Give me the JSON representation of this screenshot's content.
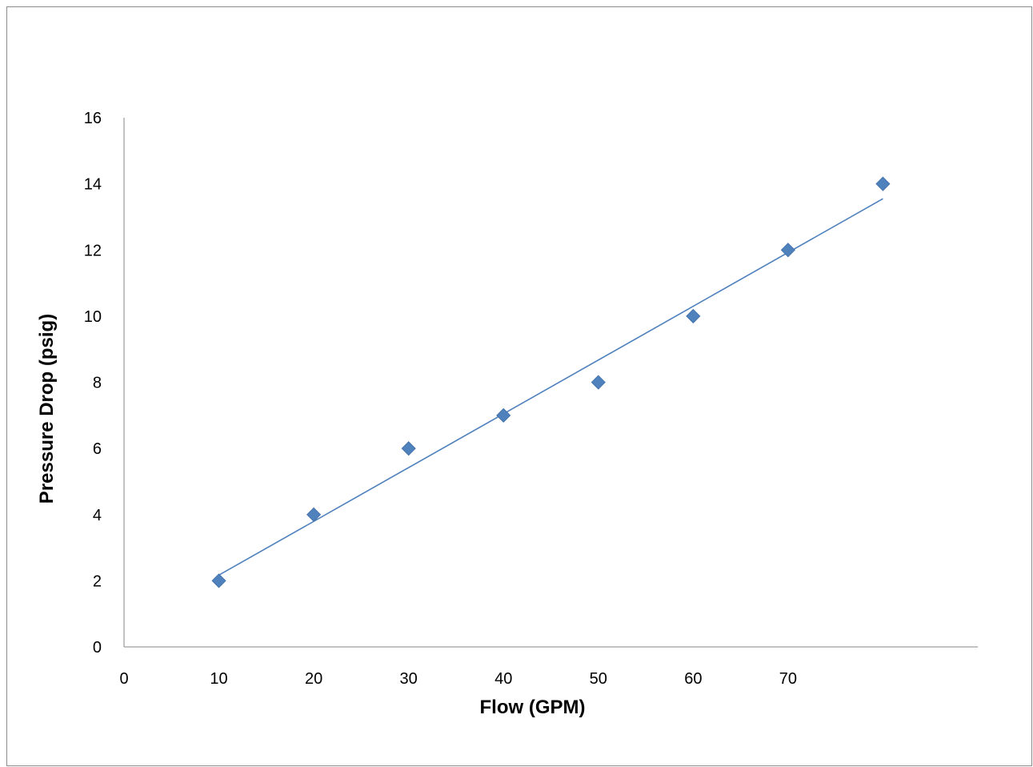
{
  "chart_data": {
    "type": "scatter",
    "title": "",
    "xlabel": "Flow (GPM)",
    "ylabel": "Pressure Drop (psig)",
    "xlim": [
      0,
      90
    ],
    "ylim": [
      0,
      16
    ],
    "x_ticks": [
      0,
      10,
      20,
      30,
      40,
      50,
      60,
      70
    ],
    "y_ticks": [
      0,
      2,
      4,
      6,
      8,
      10,
      12,
      14,
      16
    ],
    "grid": false,
    "legend": "none",
    "series": [
      {
        "x": [
          10,
          20,
          30,
          40,
          50,
          60,
          70,
          80
        ],
        "y": [
          2,
          4,
          6,
          7,
          8,
          10,
          12,
          14
        ],
        "marker": "diamond",
        "color": "#4f81bd"
      }
    ],
    "trendline": {
      "type": "linear",
      "x_range": [
        10,
        80
      ],
      "y_range": [
        2.17,
        13.55
      ],
      "color": "#4f81bd"
    }
  }
}
